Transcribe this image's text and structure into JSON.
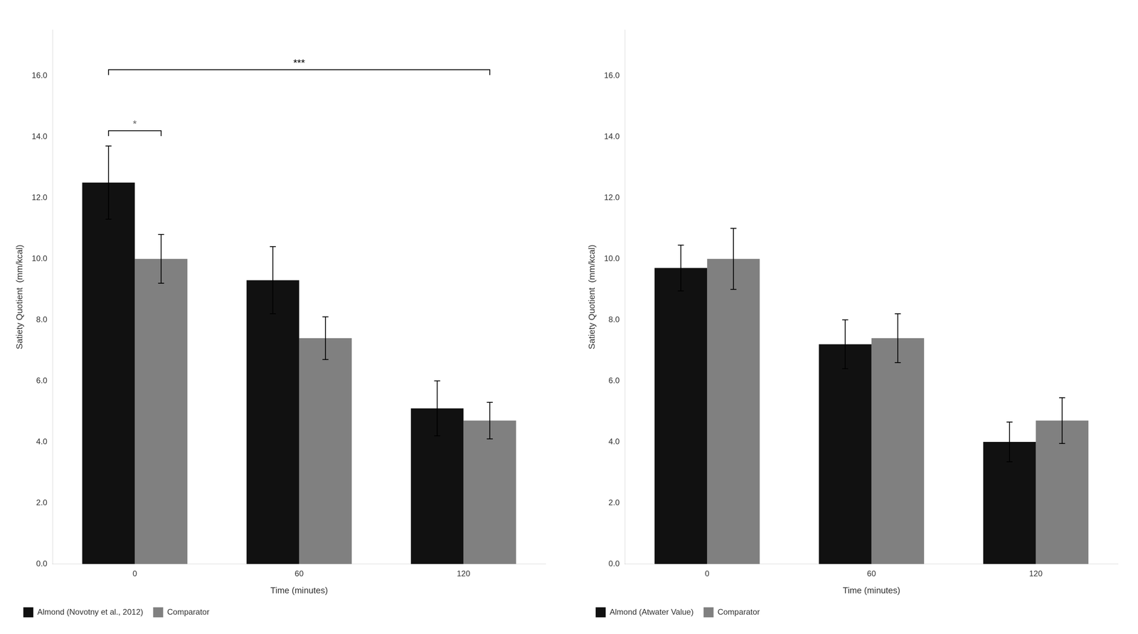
{
  "chart_data": [
    {
      "type": "bar",
      "xlabel": "Time (minutes)",
      "ylabel": "Satiety Quotient  (mm/kcal)",
      "categories": [
        "0",
        "60",
        "120"
      ],
      "series": [
        {
          "name": "Almond (Novotny et al., 2012)",
          "color": "#111111",
          "values": [
            12.5,
            9.3,
            5.1
          ],
          "errors": [
            1.2,
            1.1,
            0.9
          ]
        },
        {
          "name": "Comparator",
          "color": "#808080",
          "values": [
            10.0,
            7.4,
            4.7
          ],
          "errors": [
            0.8,
            0.7,
            0.6
          ]
        }
      ],
      "ylim": [
        0.0,
        17.5
      ],
      "yticks": [
        {
          "value": 0.0,
          "label": "0.0"
        },
        {
          "value": 2.0,
          "label": "2.0"
        },
        {
          "value": 4.0,
          "label": "4.0"
        },
        {
          "value": 6.0,
          "label": "6.0"
        },
        {
          "value": 8.0,
          "label": "8.0"
        },
        {
          "value": 10.0,
          "label": "10.0"
        },
        {
          "value": 12.0,
          "label": "12.0"
        },
        {
          "value": 14.0,
          "label": "14.0"
        },
        {
          "value": 16.0,
          "label": "16.0"
        }
      ],
      "grid": false,
      "legend": "bottom",
      "annotations": [
        {
          "text": "*",
          "color": "#666666",
          "y": 14.2,
          "from": {
            "category": "0",
            "series": "Almond (Novotny et al., 2012)"
          },
          "to": {
            "category": "0",
            "series": "Comparator"
          }
        },
        {
          "text": "***",
          "color": "#000000",
          "y": 16.2,
          "from": {
            "category": "0",
            "series": "Almond (Novotny et al., 2012)"
          },
          "to": {
            "category": "120",
            "series": "Comparator"
          }
        }
      ]
    },
    {
      "type": "bar",
      "xlabel": "Time (minutes)",
      "ylabel": "Satiety Quotient  (mm/kcal)",
      "categories": [
        "0",
        "60",
        "120"
      ],
      "series": [
        {
          "name": "Almond (Atwater Value)",
          "color": "#111111",
          "values": [
            9.7,
            7.2,
            4.0
          ],
          "errors": [
            0.75,
            0.8,
            0.65
          ]
        },
        {
          "name": "Comparator",
          "color": "#808080",
          "values": [
            10.0,
            7.4,
            4.7
          ],
          "errors": [
            1.0,
            0.8,
            0.75
          ]
        }
      ],
      "ylim": [
        0.0,
        17.5
      ],
      "yticks": [
        {
          "value": 0.0,
          "label": "0.0"
        },
        {
          "value": 2.0,
          "label": "2.0"
        },
        {
          "value": 4.0,
          "label": "4.0"
        },
        {
          "value": 6.0,
          "label": "6.0"
        },
        {
          "value": 8.0,
          "label": "8.0"
        },
        {
          "value": 10.0,
          "label": "10.0"
        },
        {
          "value": 12.0,
          "label": "12.0"
        },
        {
          "value": 14.0,
          "label": "14.0"
        },
        {
          "value": 16.0,
          "label": "16.0"
        }
      ],
      "grid": false,
      "legend": "bottom"
    }
  ]
}
